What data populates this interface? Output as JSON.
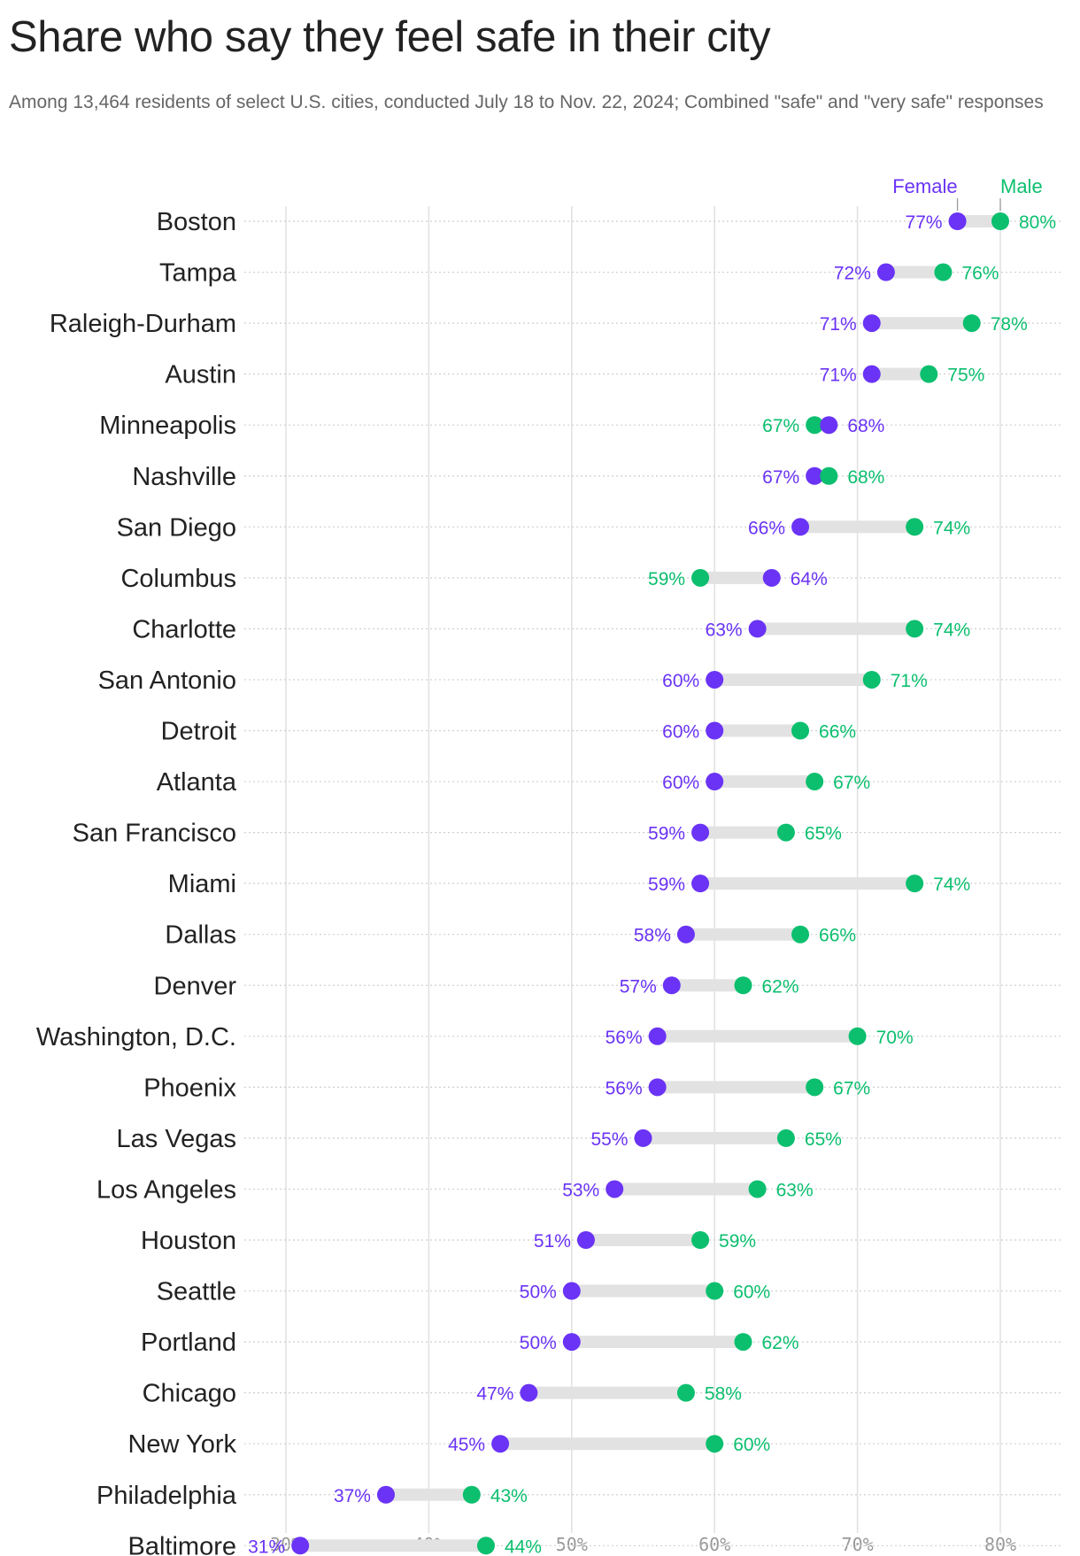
{
  "title": "Share who say they feel safe in their city",
  "subtitle": "Among 13,464 residents of select U.S. cities, conducted July 18 to Nov. 22, 2024; Combined \"safe\" and \"very safe\" responses",
  "colors": {
    "female": "#6a33f5",
    "male": "#0bbf6e",
    "connector": "#e2e2e2",
    "grid": "#e0e0e0"
  },
  "chart_data": {
    "type": "dumbbell",
    "xlim": [
      30,
      80
    ],
    "xticks": [
      "30%",
      "40%",
      "50%",
      "60%",
      "70%",
      "80%"
    ],
    "grid": true,
    "legend": "top-right",
    "series": [
      {
        "name": "Female"
      },
      {
        "name": "Male"
      }
    ],
    "rows": [
      {
        "city": "Boston",
        "female": 77,
        "male": 80
      },
      {
        "city": "Tampa",
        "female": 72,
        "male": 76
      },
      {
        "city": "Raleigh-Durham",
        "female": 71,
        "male": 78
      },
      {
        "city": "Austin",
        "female": 71,
        "male": 75
      },
      {
        "city": "Minneapolis",
        "female": 68,
        "male": 67
      },
      {
        "city": "Nashville",
        "female": 67,
        "male": 68
      },
      {
        "city": "San Diego",
        "female": 66,
        "male": 74
      },
      {
        "city": "Columbus",
        "female": 64,
        "male": 59
      },
      {
        "city": "Charlotte",
        "female": 63,
        "male": 74
      },
      {
        "city": "San Antonio",
        "female": 60,
        "male": 71
      },
      {
        "city": "Detroit",
        "female": 60,
        "male": 66
      },
      {
        "city": "Atlanta",
        "female": 60,
        "male": 67
      },
      {
        "city": "San Francisco",
        "female": 59,
        "male": 65
      },
      {
        "city": "Miami",
        "female": 59,
        "male": 74
      },
      {
        "city": "Dallas",
        "female": 58,
        "male": 66
      },
      {
        "city": "Denver",
        "female": 57,
        "male": 62
      },
      {
        "city": "Washington, D.C.",
        "female": 56,
        "male": 70
      },
      {
        "city": "Phoenix",
        "female": 56,
        "male": 67
      },
      {
        "city": "Las Vegas",
        "female": 55,
        "male": 65
      },
      {
        "city": "Los Angeles",
        "female": 53,
        "male": 63
      },
      {
        "city": "Houston",
        "female": 51,
        "male": 59
      },
      {
        "city": "Seattle",
        "female": 50,
        "male": 60
      },
      {
        "city": "Portland",
        "female": 50,
        "male": 62
      },
      {
        "city": "Chicago",
        "female": 47,
        "male": 58
      },
      {
        "city": "New York",
        "female": 45,
        "male": 60
      },
      {
        "city": "Philadelphia",
        "female": 37,
        "male": 43
      },
      {
        "city": "Baltimore",
        "female": 31,
        "male": 44
      }
    ]
  }
}
